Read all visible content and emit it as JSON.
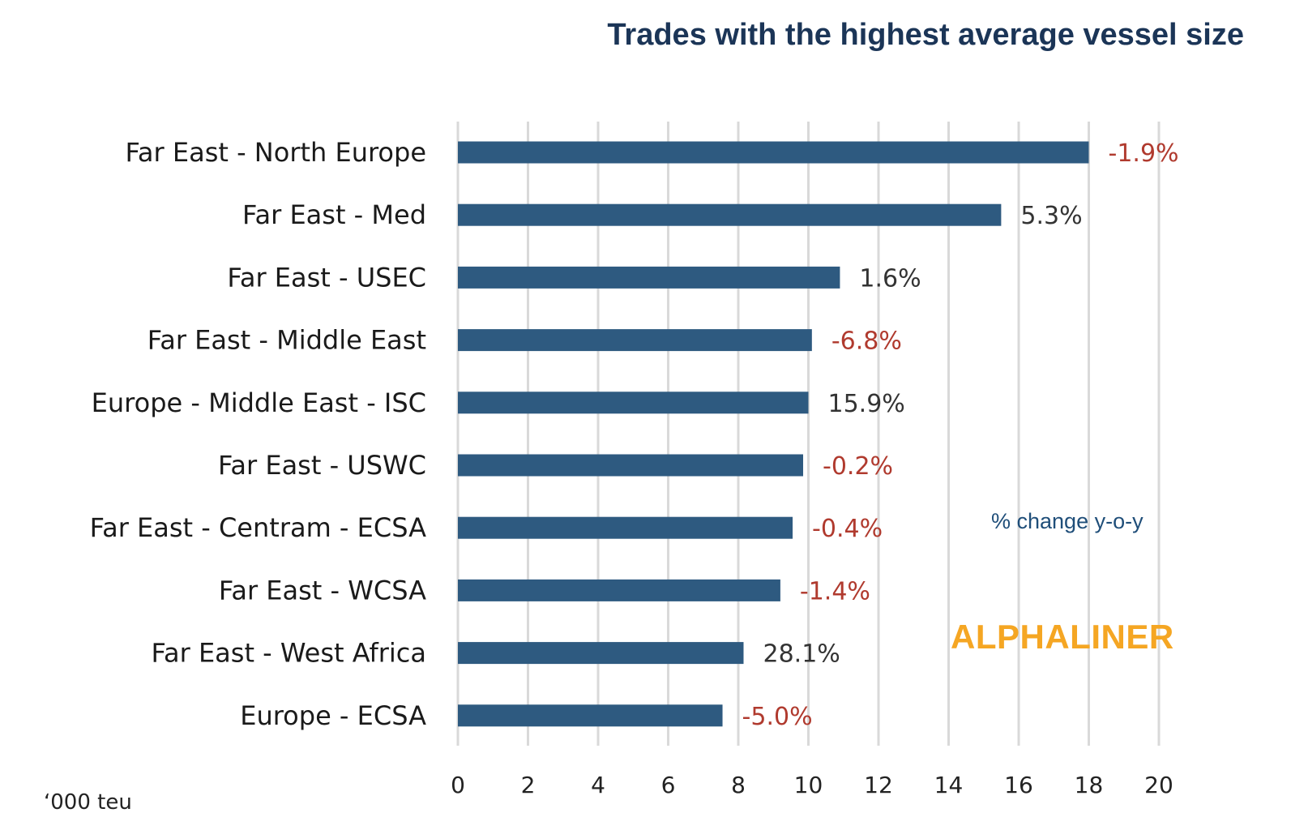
{
  "chart_data": {
    "type": "bar",
    "orientation": "horizontal",
    "title": "Trades with the highest average vessel size",
    "unit_label": "‘000 teu",
    "annotation": "% change y-o-y",
    "brand": "ALPHALINER",
    "categories": [
      "Far East - North Europe",
      "Far East - Med",
      "Far East - USEC",
      "Far East - Middle East",
      "Europe - Middle East - ISC",
      "Far East - USWC",
      "Far East - Centram - ECSA",
      "Far East - WCSA",
      "Far East - West Africa",
      "Europe - ECSA"
    ],
    "values": [
      18.0,
      15.5,
      10.9,
      10.1,
      10.0,
      9.85,
      9.55,
      9.2,
      8.15,
      7.55
    ],
    "change_labels": [
      "-1.9%",
      "5.3%",
      "1.6%",
      "-6.8%",
      "15.9%",
      "-0.2%",
      "-0.4%",
      "-1.4%",
      "28.1%",
      "-5.0%"
    ],
    "xlim": [
      0,
      20
    ],
    "xticks": [
      0,
      2,
      4,
      6,
      8,
      10,
      12,
      14,
      16,
      18,
      20
    ],
    "grid": true,
    "colors": {
      "bar": "#2e5a80",
      "grid": "#d9d9d9",
      "negative": "#b03a2e",
      "positive": "#333333",
      "category_text": "#1a1a1a",
      "title": "#1b3557",
      "annotation": "#1f4e79",
      "brand": "#f5a623"
    }
  }
}
